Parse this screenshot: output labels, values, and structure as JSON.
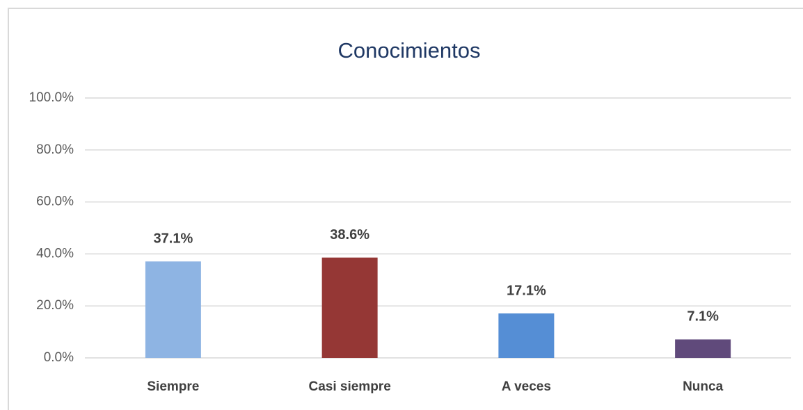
{
  "chart_data": {
    "type": "bar",
    "title": "Conocimientos",
    "categories": [
      "Siempre",
      "Casi siempre",
      "A veces",
      "Nunca"
    ],
    "values": [
      37.1,
      38.6,
      17.1,
      7.1
    ],
    "value_labels": [
      "37.1%",
      "38.6%",
      "17.1%",
      "7.1%"
    ],
    "colors": [
      "#8eb4e3",
      "#953735",
      "#558ed5",
      "#604a7b"
    ],
    "ylim": [
      0,
      100
    ],
    "yticks": [
      {
        "value": 0,
        "label": "0.0%"
      },
      {
        "value": 20,
        "label": "20.0%"
      },
      {
        "value": 40,
        "label": "40.0%"
      },
      {
        "value": 60,
        "label": "60.0%"
      },
      {
        "value": 80,
        "label": "80.0%"
      },
      {
        "value": 100,
        "label": "100.0%"
      }
    ],
    "grid": true
  }
}
